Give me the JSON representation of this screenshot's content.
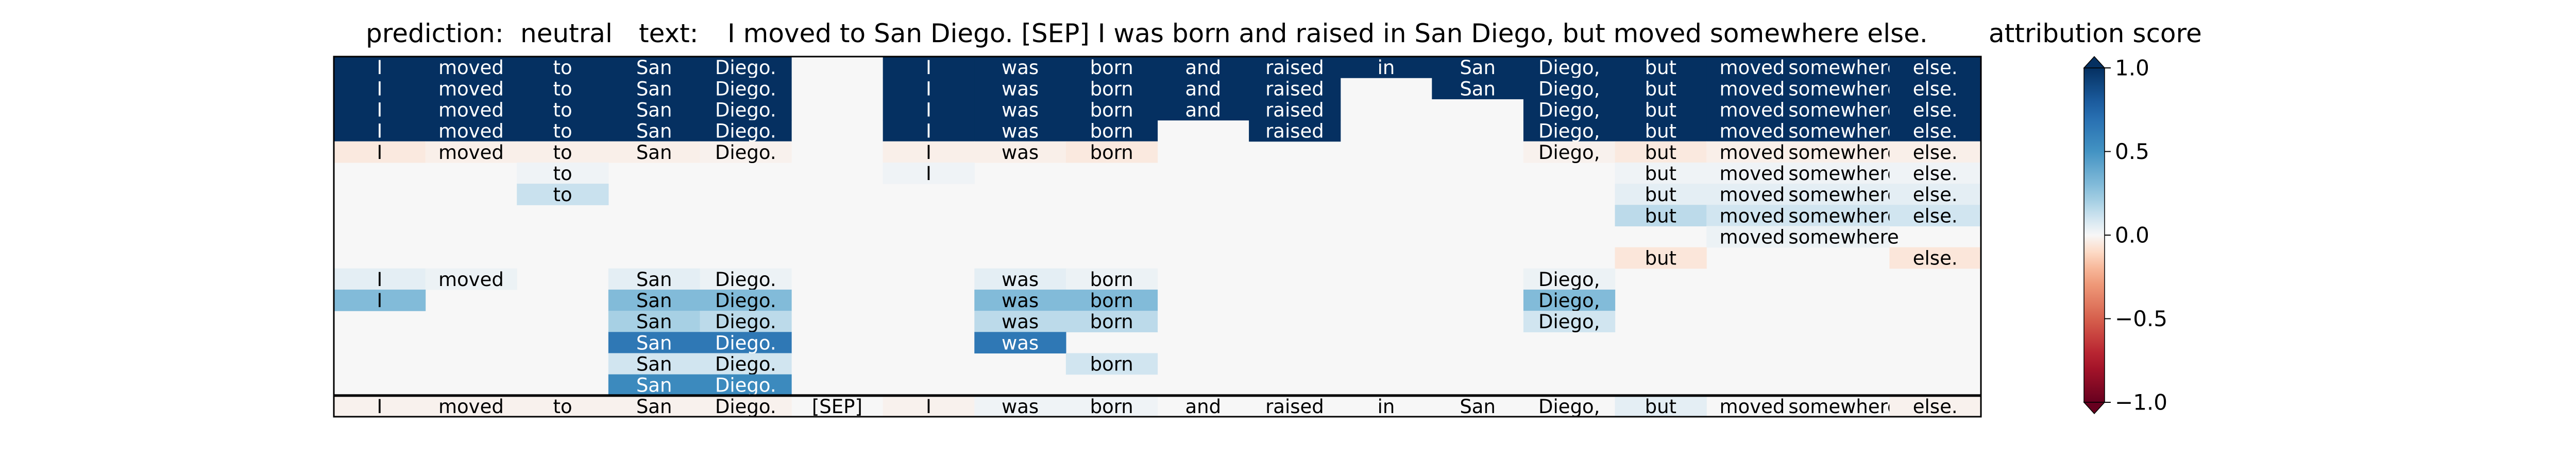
{
  "header": {
    "prediction_label": "prediction:",
    "prediction_value": "neutral",
    "text_label": "text:",
    "text_value": "I moved to San Diego. [SEP] I was born and raised in San Diego, but moved somewhere else.",
    "colorbar_title": "attribution score"
  },
  "chart_data": {
    "type": "heatmap",
    "title": "prediction:  neutral     text:  I moved to San Diego. [SEP] I was born and raised in San Diego, but moved somewhere else.",
    "colormap": "RdBu",
    "vmin": -1.0,
    "vmax": 1.0,
    "colorbar_label": "attribution score",
    "colorbar_ticks": [
      1.0,
      0.5,
      0.0,
      -0.5,
      -1.0
    ],
    "colorbar_tick_labels": [
      "1.0",
      "0.5",
      "0.0",
      "−0.5",
      "−1.0"
    ],
    "colorbar_extend": "both",
    "tokens": [
      "I",
      "moved",
      "to",
      "San",
      "Diego.",
      "[SEP]",
      "I",
      "was",
      "born",
      "and",
      "raised",
      "in",
      "San",
      "Diego,",
      "but",
      "moved",
      "somewhere",
      "else."
    ],
    "rows": [
      {
        "values": [
          1.0,
          1.0,
          1.0,
          1.0,
          1.0,
          0,
          1.0,
          1.0,
          1.0,
          1.0,
          1.0,
          1.0,
          1.0,
          1.0,
          1.0,
          1.0,
          1.0,
          1.0
        ],
        "shown": [
          1,
          1,
          1,
          1,
          1,
          0,
          1,
          1,
          1,
          1,
          1,
          1,
          1,
          1,
          1,
          1,
          1,
          1
        ]
      },
      {
        "values": [
          1.0,
          1.0,
          1.0,
          1.0,
          1.0,
          0,
          1.0,
          1.0,
          1.0,
          1.0,
          1.0,
          0,
          1.0,
          1.0,
          1.0,
          1.0,
          1.0,
          1.0
        ],
        "shown": [
          1,
          1,
          1,
          1,
          1,
          0,
          1,
          1,
          1,
          1,
          1,
          0,
          1,
          1,
          1,
          1,
          1,
          1
        ]
      },
      {
        "values": [
          1.0,
          1.0,
          1.0,
          1.0,
          1.0,
          0,
          1.0,
          1.0,
          1.0,
          1.0,
          1.0,
          0,
          0,
          1.0,
          1.0,
          1.0,
          1.0,
          1.0
        ],
        "shown": [
          1,
          1,
          1,
          1,
          1,
          0,
          1,
          1,
          1,
          1,
          1,
          0,
          0,
          1,
          1,
          1,
          1,
          1
        ]
      },
      {
        "values": [
          1.0,
          1.0,
          1.0,
          1.0,
          1.0,
          0,
          1.0,
          1.0,
          1.0,
          0,
          1.0,
          0,
          0,
          1.0,
          1.0,
          1.0,
          1.0,
          1.0
        ],
        "shown": [
          1,
          1,
          1,
          1,
          1,
          0,
          1,
          1,
          1,
          0,
          1,
          0,
          0,
          1,
          1,
          1,
          1,
          1
        ]
      },
      {
        "values": [
          -0.05,
          -0.03,
          -0.03,
          -0.03,
          -0.02,
          0,
          -0.03,
          -0.03,
          -0.05,
          0,
          0,
          0,
          0,
          -0.02,
          -0.05,
          -0.03,
          -0.03,
          -0.03
        ],
        "shown": [
          1,
          1,
          1,
          1,
          1,
          0,
          1,
          1,
          1,
          0,
          0,
          0,
          0,
          1,
          1,
          1,
          1,
          1
        ]
      },
      {
        "values": [
          0,
          0,
          0.02,
          0,
          0,
          0,
          0.02,
          0,
          0,
          0,
          0,
          0,
          0,
          0,
          0.02,
          0.02,
          0.02,
          0.02
        ],
        "shown": [
          0,
          0,
          1,
          0,
          0,
          0,
          1,
          0,
          0,
          0,
          0,
          0,
          0,
          0,
          1,
          1,
          1,
          1
        ]
      },
      {
        "values": [
          0,
          0,
          0.12,
          0,
          0,
          0,
          0,
          0,
          0,
          0,
          0,
          0,
          0,
          0,
          0.05,
          0.05,
          0.05,
          0.05
        ],
        "shown": [
          0,
          0,
          1,
          0,
          0,
          0,
          0,
          0,
          0,
          0,
          0,
          0,
          0,
          0,
          1,
          1,
          1,
          1
        ]
      },
      {
        "values": [
          0,
          0,
          0,
          0,
          0,
          0,
          0,
          0,
          0,
          0,
          0,
          0,
          0,
          0,
          0.15,
          0.1,
          0.1,
          0.1
        ],
        "shown": [
          0,
          0,
          0,
          0,
          0,
          0,
          0,
          0,
          0,
          0,
          0,
          0,
          0,
          0,
          1,
          1,
          1,
          1
        ]
      },
      {
        "values": [
          0,
          0,
          0,
          0,
          0,
          0,
          0,
          0,
          0,
          0,
          0,
          0,
          0,
          0,
          0,
          0.03,
          0.03,
          0
        ],
        "shown": [
          0,
          0,
          0,
          0,
          0,
          0,
          0,
          0,
          0,
          0,
          0,
          0,
          0,
          0,
          0,
          1,
          1,
          0
        ]
      },
      {
        "values": [
          0,
          0,
          0,
          0,
          0,
          0,
          0,
          0,
          0,
          0,
          0,
          0,
          0,
          0,
          -0.06,
          0,
          0,
          -0.06
        ],
        "shown": [
          0,
          0,
          0,
          0,
          0,
          0,
          0,
          0,
          0,
          0,
          0,
          0,
          0,
          0,
          1,
          0,
          0,
          1
        ]
      },
      {
        "values": [
          0.05,
          0.03,
          0,
          0.05,
          0.03,
          0,
          0,
          0.05,
          0.03,
          0,
          0,
          0,
          0,
          0.03,
          0,
          0,
          0,
          0
        ],
        "shown": [
          1,
          1,
          0,
          1,
          1,
          0,
          0,
          1,
          1,
          0,
          0,
          0,
          0,
          1,
          0,
          0,
          0,
          0
        ]
      },
      {
        "values": [
          0.3,
          0,
          0,
          0.3,
          0.3,
          0,
          0,
          0.3,
          0.3,
          0,
          0,
          0,
          0,
          0.3,
          0,
          0,
          0,
          0
        ],
        "shown": [
          1,
          0,
          0,
          1,
          1,
          0,
          0,
          1,
          1,
          0,
          0,
          0,
          0,
          1,
          0,
          0,
          0,
          0
        ]
      },
      {
        "values": [
          0,
          0,
          0,
          0.2,
          0.15,
          0,
          0,
          0.15,
          0.15,
          0,
          0,
          0,
          0,
          0.1,
          0,
          0,
          0,
          0
        ],
        "shown": [
          0,
          0,
          0,
          1,
          1,
          0,
          0,
          1,
          1,
          0,
          0,
          0,
          0,
          1,
          0,
          0,
          0,
          0
        ]
      },
      {
        "values": [
          0,
          0,
          0,
          0.65,
          0.65,
          0,
          0,
          0.65,
          0,
          0,
          0,
          0,
          0,
          0,
          0,
          0,
          0,
          0
        ],
        "shown": [
          0,
          0,
          0,
          1,
          1,
          0,
          0,
          1,
          0,
          0,
          0,
          0,
          0,
          0,
          0,
          0,
          0,
          0
        ]
      },
      {
        "values": [
          0,
          0,
          0,
          0.1,
          0.1,
          0,
          0,
          0,
          0.1,
          0,
          0,
          0,
          0,
          0,
          0,
          0,
          0,
          0
        ],
        "shown": [
          0,
          0,
          0,
          1,
          1,
          0,
          0,
          0,
          1,
          0,
          0,
          0,
          0,
          0,
          0,
          0,
          0,
          0
        ]
      },
      {
        "values": [
          0,
          0,
          0,
          0.55,
          0.55,
          0,
          0,
          0,
          0,
          0,
          0,
          0,
          0,
          0,
          0,
          0,
          0,
          0
        ],
        "shown": [
          0,
          0,
          0,
          1,
          1,
          0,
          0,
          0,
          0,
          0,
          0,
          0,
          0,
          0,
          0,
          0,
          0,
          0
        ]
      }
    ],
    "bottom_row": {
      "values": [
        -0.02,
        -0.02,
        -0.02,
        -0.02,
        -0.02,
        0,
        -0.02,
        0.02,
        0.02,
        0,
        0,
        0,
        0,
        0,
        0.05,
        0,
        0,
        -0.02
      ],
      "shown": [
        1,
        1,
        1,
        1,
        1,
        1,
        1,
        1,
        1,
        1,
        1,
        1,
        1,
        1,
        1,
        1,
        1,
        1
      ]
    }
  }
}
